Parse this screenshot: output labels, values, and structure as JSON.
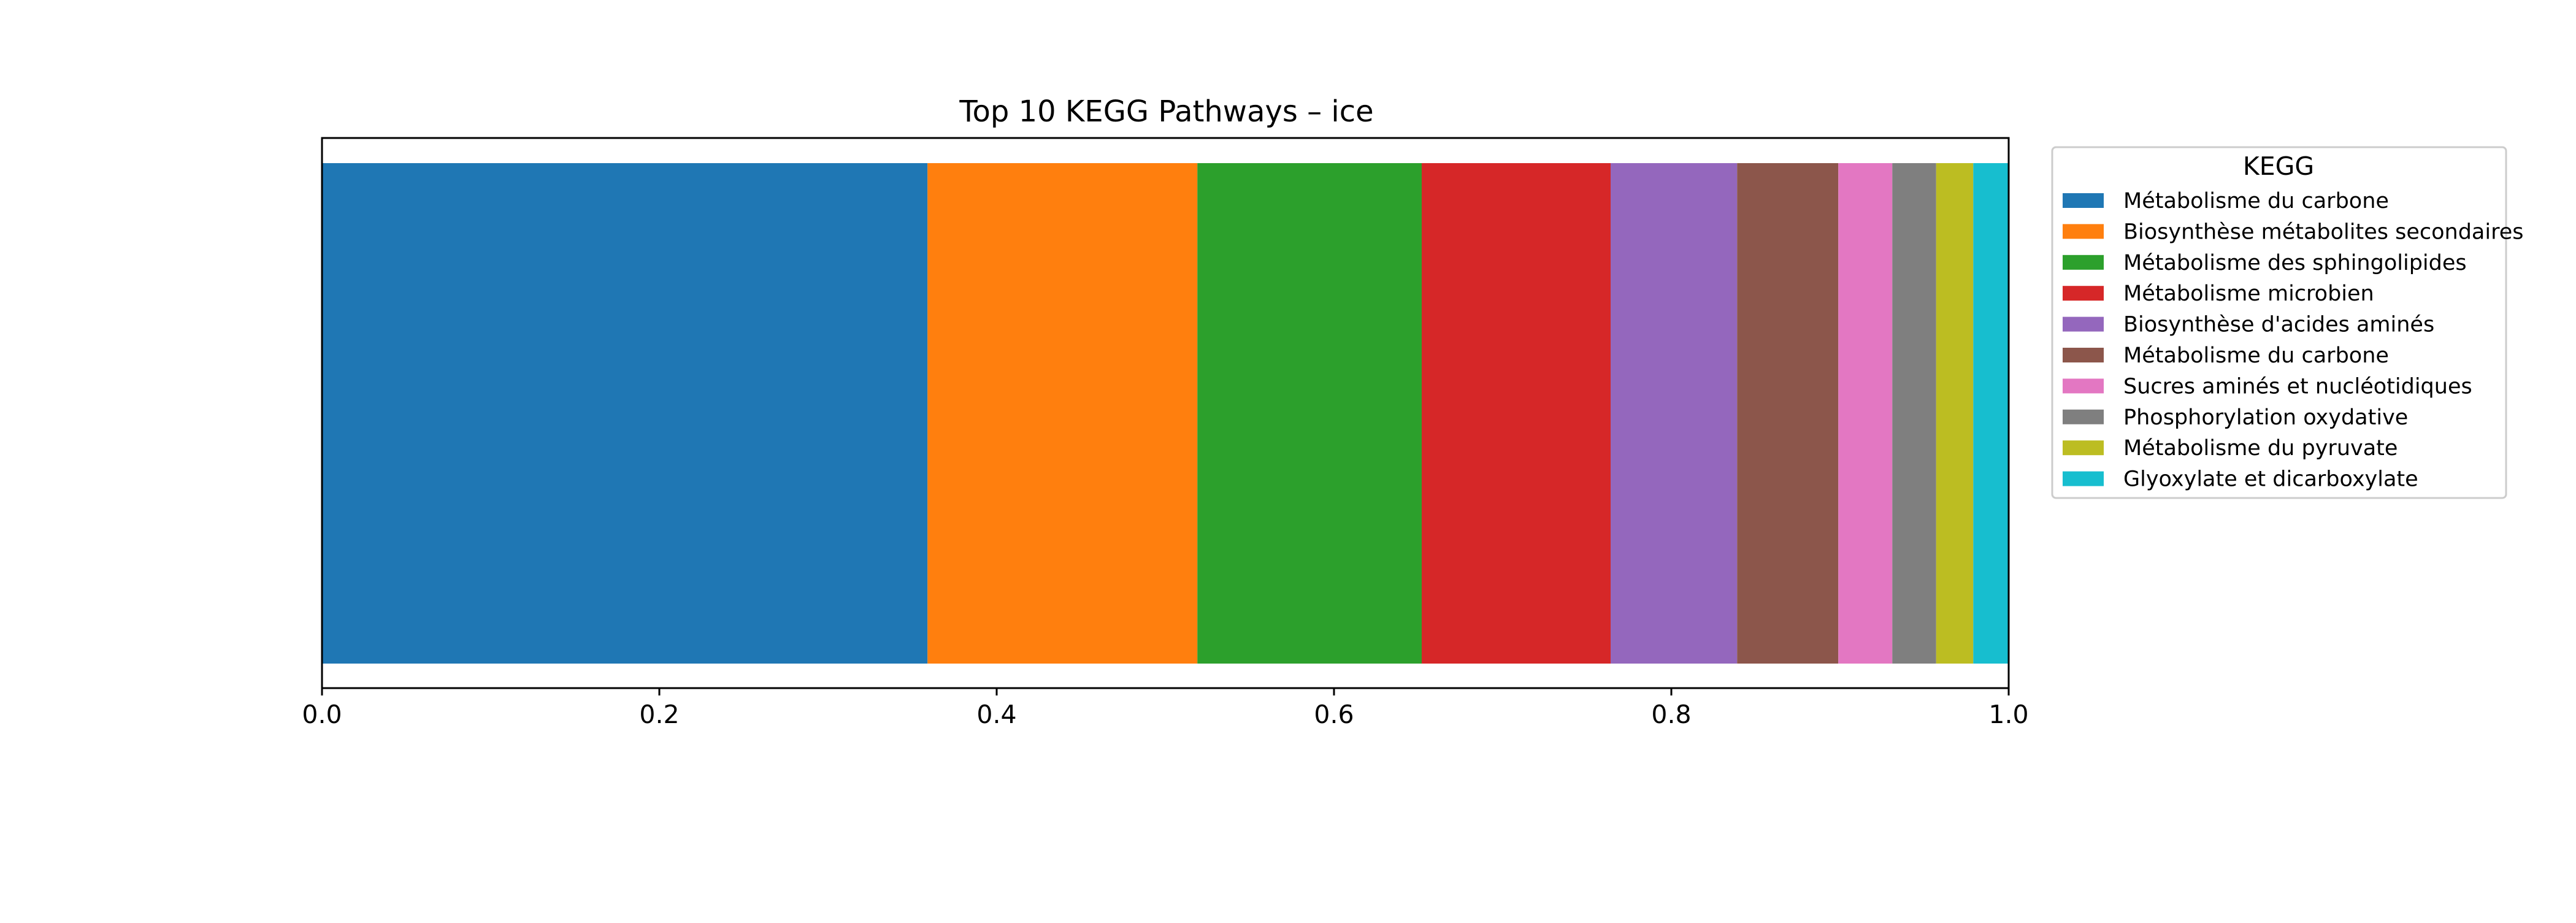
{
  "chart_data": {
    "type": "bar",
    "orientation": "horizontal-stacked",
    "title": "Top 10 KEGG Pathways – ice",
    "xlabel": "",
    "ylabel": "",
    "xlim": [
      0,
      1
    ],
    "x_ticks": [
      "0.0",
      "0.2",
      "0.4",
      "0.6",
      "0.8",
      "1.0"
    ],
    "grid": false,
    "legend": {
      "title": "KEGG",
      "placement": "outside-right-top"
    },
    "series": [
      {
        "name": "Métabolisme du carbone",
        "value": 0.359,
        "color": "#1f77b4"
      },
      {
        "name": "Biosynthèse métabolites secondaires",
        "value": 0.16,
        "color": "#ff7f0e"
      },
      {
        "name": "Métabolisme des sphingolipides",
        "value": 0.133,
        "color": "#2ca02c"
      },
      {
        "name": "Métabolisme microbien",
        "value": 0.112,
        "color": "#d62728"
      },
      {
        "name": "Biosynthèse d'acides aminés",
        "value": 0.075,
        "color": "#9467bd"
      },
      {
        "name": "Métabolisme du carbone",
        "value": 0.06,
        "color": "#8c564b"
      },
      {
        "name": "Sucres aminés et nucléotidiques",
        "value": 0.032,
        "color": "#e377c2"
      },
      {
        "name": "Phosphorylation oxydative",
        "value": 0.026,
        "color": "#7f7f7f"
      },
      {
        "name": "Métabolisme du pyruvate",
        "value": 0.022,
        "color": "#bcbd22"
      },
      {
        "name": "Glyoxylate et dicarboxylate",
        "value": 0.021,
        "color": "#17becf"
      }
    ]
  }
}
